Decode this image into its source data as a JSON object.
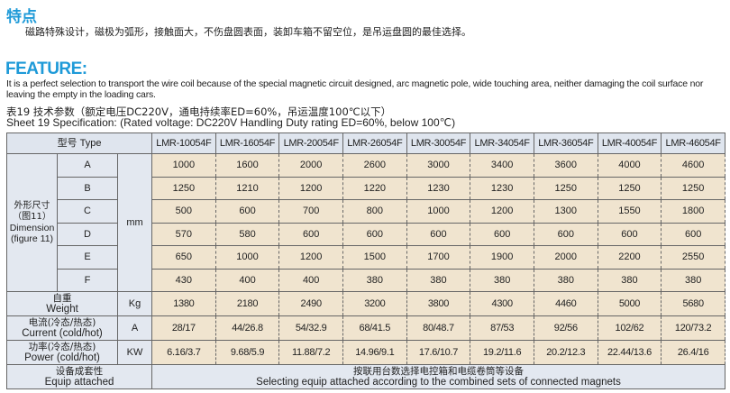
{
  "feature_cn": {
    "title": "特点",
    "text": "磁路特殊设计，磁极为弧形，接触面大，不伤盘圆表面，装卸车箱不留空位，是吊运盘圆的最佳选择。"
  },
  "feature_en": {
    "title": "FEATURE:",
    "text": "It is a perfect selection to transport the wire coil because of the special magnetic circuit designed, arc magnetic pole, wide touching area, neither damaging the coil surface nor leaving the empty in the loading cars."
  },
  "sheet": {
    "title_cn": "表19 技术参数（额定电压DC220V，通电持续率ED=60%，吊运温度100℃以下）",
    "title_en": "Sheet 19 Specification:  (Rated voltage: DC220V  Handling Duty rating ED=60%, below 100℃)"
  },
  "table": {
    "type_label": "型号   Type",
    "models": [
      "LMR-10054F",
      "LMR-16054F",
      "LMR-20054F",
      "LMR-26054F",
      "LMR-30054F",
      "LMR-34054F",
      "LMR-36054F",
      "LMR-40054F",
      "LMR-46054F"
    ],
    "dimension_label_cn": "外形尺寸（图11）",
    "dimension_label_en": "Dimension (figure 11)",
    "dimension_unit": "mm",
    "dimensions": [
      {
        "key": "A",
        "values": [
          "1000",
          "1600",
          "2000",
          "2600",
          "3000",
          "3400",
          "3600",
          "4000",
          "4600"
        ]
      },
      {
        "key": "B",
        "values": [
          "1250",
          "1210",
          "1200",
          "1220",
          "1230",
          "1230",
          "1250",
          "1250",
          "1250"
        ]
      },
      {
        "key": "C",
        "values": [
          "500",
          "600",
          "700",
          "800",
          "1000",
          "1200",
          "1300",
          "1550",
          "1800"
        ]
      },
      {
        "key": "D",
        "values": [
          "570",
          "580",
          "600",
          "600",
          "600",
          "600",
          "600",
          "600",
          "600"
        ]
      },
      {
        "key": "E",
        "values": [
          "650",
          "1000",
          "1200",
          "1500",
          "1700",
          "1900",
          "2000",
          "2200",
          "2550"
        ]
      },
      {
        "key": "F",
        "values": [
          "430",
          "400",
          "400",
          "380",
          "380",
          "380",
          "380",
          "380",
          "380"
        ]
      }
    ],
    "rows": [
      {
        "label_cn": "自重",
        "label_en": "Weight",
        "unit": "Kg",
        "values": [
          "1380",
          "2180",
          "2490",
          "3200",
          "3800",
          "4300",
          "4460",
          "5000",
          "5680"
        ]
      },
      {
        "label_cn": "电流(冷态/热态)",
        "label_en": "Current (cold/hot)",
        "unit": "A",
        "values": [
          "28/17",
          "44/26.8",
          "54/32.9",
          "68/41.5",
          "80/48.7",
          "87/53",
          "92/56",
          "102/62",
          "120/73.2"
        ]
      },
      {
        "label_cn": "功率(冷态/热态)",
        "label_en": "Power (cold/hot)",
        "unit": "KW",
        "values": [
          "6.16/3.7",
          "9.68/5.9",
          "11.88/7.2",
          "14.96/9.1",
          "17.6/10.7",
          "19.2/11.6",
          "20.2/12.3",
          "22.44/13.6",
          "26.4/16"
        ]
      }
    ],
    "equip": {
      "label_cn": "设备成套性",
      "label_en": "Equip attached",
      "text_cn": "按联用台数选择电控箱和电缆卷筒等设备",
      "text_en": "Selecting equip attached according to the combined sets of connected magnets"
    }
  }
}
